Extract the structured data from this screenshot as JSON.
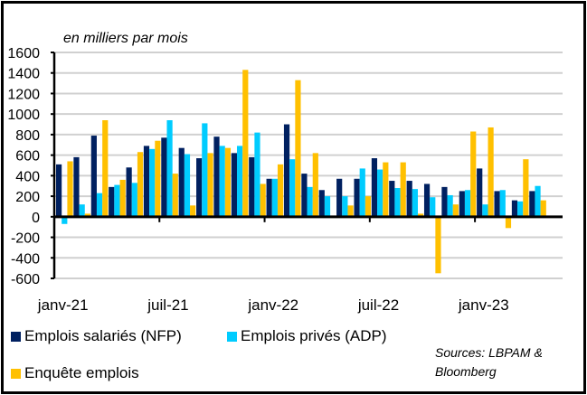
{
  "chart_data": {
    "type": "bar",
    "title": "",
    "unit_note": "en milliers par mois",
    "xlabel": "",
    "ylabel": "",
    "ylim": [
      -600,
      1600
    ],
    "yticks": [
      1600,
      1400,
      1200,
      1000,
      800,
      600,
      400,
      200,
      0,
      -200,
      -400,
      -600
    ],
    "grid": true,
    "legend_position": "bottom",
    "x_tick_labels": [
      "janv-21",
      "juil-21",
      "janv-22",
      "juil-22",
      "janv-23"
    ],
    "categories": [
      "janv-21",
      "févr-21",
      "mars-21",
      "avr-21",
      "mai-21",
      "juin-21",
      "juil-21",
      "août-21",
      "sept-21",
      "oct-21",
      "nov-21",
      "déc-21",
      "janv-22",
      "févr-22",
      "mars-22",
      "avr-22",
      "mai-22",
      "juin-22",
      "juil-22",
      "août-22",
      "sept-22",
      "oct-22",
      "nov-22",
      "déc-22",
      "janv-23",
      "févr-23",
      "mars-23",
      "avr-23",
      "mai-23"
    ],
    "series": [
      {
        "name": "Emplois salariés (NFP)",
        "color": "#002060",
        "values": [
          510,
          580,
          790,
          290,
          480,
          690,
          770,
          670,
          570,
          780,
          620,
          580,
          370,
          900,
          420,
          260,
          370,
          370,
          570,
          350,
          350,
          320,
          290,
          250,
          470,
          250,
          160,
          250,
          null
        ]
      },
      {
        "name": "Emplois privés (ADP)",
        "color": "#00CCFF",
        "values": [
          -70,
          120,
          230,
          310,
          330,
          660,
          940,
          610,
          910,
          690,
          690,
          820,
          370,
          560,
          290,
          200,
          200,
          470,
          460,
          280,
          270,
          190,
          210,
          260,
          120,
          260,
          150,
          300,
          null
        ]
      },
      {
        "name": "Enquête emplois",
        "color": "#FFC000",
        "values": [
          540,
          30,
          940,
          360,
          630,
          740,
          420,
          110,
          620,
          670,
          1430,
          320,
          510,
          1330,
          620,
          0,
          110,
          200,
          530,
          530,
          30,
          -550,
          120,
          830,
          870,
          -110,
          560,
          160,
          null
        ]
      }
    ],
    "source": "Sources: LBPAM & Bloomberg"
  }
}
